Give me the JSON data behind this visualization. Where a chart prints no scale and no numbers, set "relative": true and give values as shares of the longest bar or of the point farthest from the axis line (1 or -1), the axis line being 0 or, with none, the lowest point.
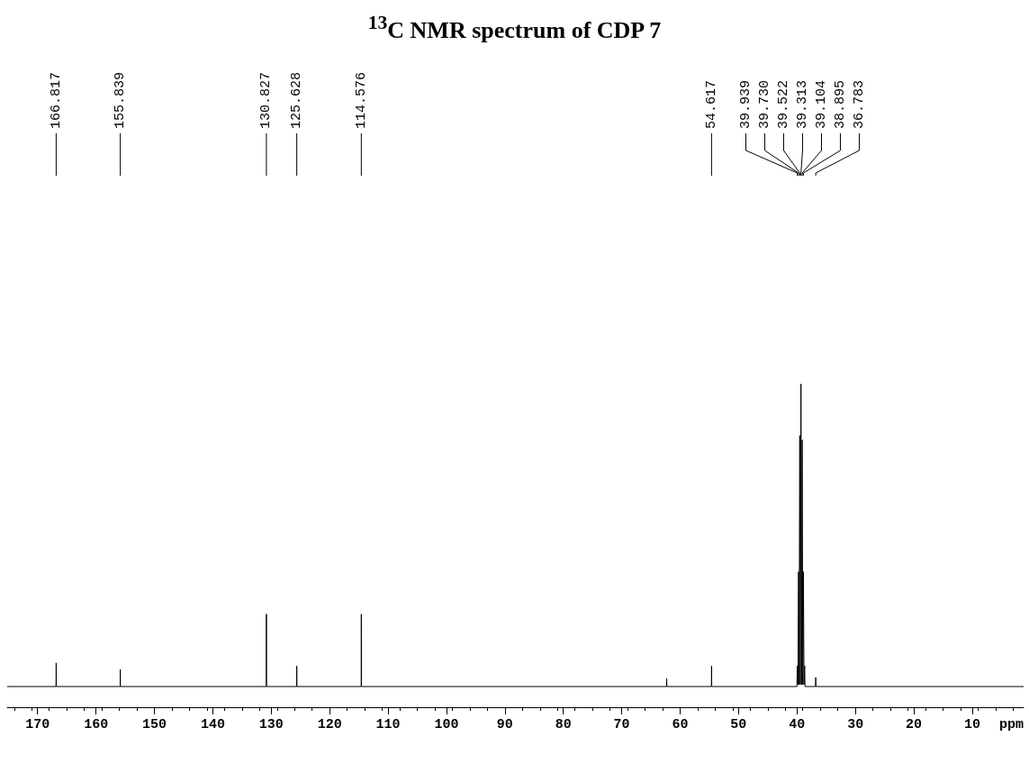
{
  "chart_data": {
    "type": "line",
    "title": "$^{13}$C NMR spectrum of CDP 7",
    "xlabel": "ppm",
    "relative": true,
    "xlim": [
      175.2,
      1.2
    ],
    "xticks": [
      170,
      160,
      150,
      140,
      130,
      120,
      110,
      100,
      90,
      80,
      70,
      60,
      50,
      40,
      30,
      20,
      10
    ],
    "series": [
      {
        "color": "#000000",
        "x": [
          175.2,
          166.84,
          166.817,
          166.79,
          155.86,
          155.839,
          155.82,
          130.85,
          130.827,
          130.8,
          125.65,
          125.628,
          125.6,
          114.6,
          114.576,
          114.55,
          62.33,
          62.3,
          62.27,
          54.64,
          54.617,
          54.59,
          40.0,
          39.939,
          39.83,
          39.73,
          39.63,
          39.522,
          39.42,
          39.313,
          39.21,
          39.104,
          39.0,
          38.895,
          38.79,
          38.683,
          38.62,
          36.81,
          36.783,
          36.76,
          1.2
        ],
        "values": [
          0.064,
          0.064,
          0.137,
          0.064,
          0.064,
          0.117,
          0.064,
          0.064,
          0.288,
          0.064,
          0.064,
          0.128,
          0.064,
          0.064,
          0.288,
          0.064,
          0.064,
          0.089,
          0.064,
          0.064,
          0.128,
          0.064,
          0.064,
          0.128,
          0.07,
          0.419,
          0.07,
          0.84,
          0.07,
          1,
          0.07,
          0.827,
          0.07,
          0.419,
          0.07,
          0.128,
          0.064,
          0.064,
          0.092,
          0.064,
          0.064
        ]
      }
    ],
    "marker": "none",
    "line_style": "solid",
    "annotations": [
      {
        "text": "166.817",
        "x": 166.817
      },
      {
        "text": "155.839",
        "x": 155.839
      },
      {
        "text": "130.827",
        "x": 130.827
      },
      {
        "text": "125.628",
        "x": 125.628
      },
      {
        "text": "114.576",
        "x": 114.576
      },
      {
        "text": "54.617",
        "x": 54.617
      },
      {
        "text": "39.939",
        "x": 39.939
      },
      {
        "text": "39.730",
        "x": 39.73
      },
      {
        "text": "39.522",
        "x": 39.522
      },
      {
        "text": "39.313",
        "x": 39.313
      },
      {
        "text": "39.104",
        "x": 39.104
      },
      {
        "text": "38.895",
        "x": 38.895
      },
      {
        "text": "36.783",
        "x": 36.783
      }
    ]
  }
}
